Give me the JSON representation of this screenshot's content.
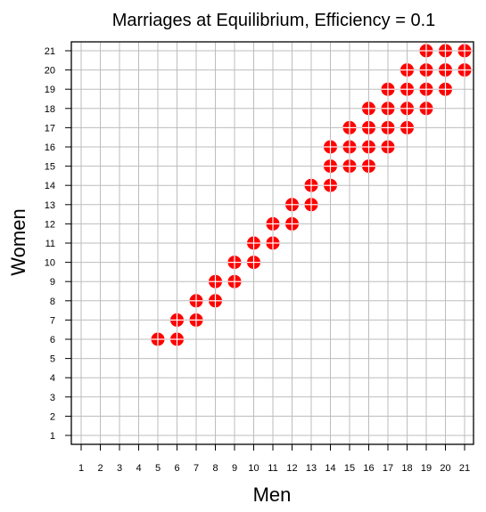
{
  "chart_data": {
    "type": "scatter",
    "title": "Marriages at Equilibrium, Efficiency = 0.1",
    "xlabel": "Men",
    "ylabel": "Women",
    "xlim": [
      1,
      21
    ],
    "ylim": [
      1,
      21
    ],
    "x_ticks": [
      "1",
      "2",
      "3",
      "4",
      "5",
      "6",
      "7",
      "8",
      "9",
      "10",
      "11",
      "12",
      "13",
      "14",
      "15",
      "16",
      "17",
      "18",
      "19",
      "20",
      "21"
    ],
    "y_ticks": [
      "1",
      "2",
      "3",
      "4",
      "5",
      "6",
      "7",
      "8",
      "9",
      "10",
      "11",
      "12",
      "13",
      "14",
      "15",
      "16",
      "17",
      "18",
      "19",
      "20",
      "21"
    ],
    "grid": true,
    "marker_color": "#ff0000",
    "points": [
      [
        5,
        6
      ],
      [
        6,
        6
      ],
      [
        6,
        7
      ],
      [
        7,
        7
      ],
      [
        7,
        8
      ],
      [
        8,
        8
      ],
      [
        8,
        9
      ],
      [
        9,
        9
      ],
      [
        9,
        10
      ],
      [
        10,
        10
      ],
      [
        10,
        11
      ],
      [
        11,
        11
      ],
      [
        11,
        12
      ],
      [
        12,
        12
      ],
      [
        12,
        13
      ],
      [
        13,
        13
      ],
      [
        13,
        14
      ],
      [
        14,
        14
      ],
      [
        14,
        15
      ],
      [
        14,
        16
      ],
      [
        15,
        15
      ],
      [
        15,
        16
      ],
      [
        15,
        17
      ],
      [
        16,
        15
      ],
      [
        16,
        16
      ],
      [
        16,
        17
      ],
      [
        16,
        18
      ],
      [
        17,
        16
      ],
      [
        17,
        17
      ],
      [
        17,
        18
      ],
      [
        17,
        19
      ],
      [
        18,
        17
      ],
      [
        18,
        18
      ],
      [
        18,
        19
      ],
      [
        18,
        20
      ],
      [
        19,
        18
      ],
      [
        19,
        19
      ],
      [
        19,
        20
      ],
      [
        19,
        21
      ],
      [
        20,
        19
      ],
      [
        20,
        20
      ],
      [
        20,
        21
      ],
      [
        21,
        20
      ],
      [
        21,
        21
      ]
    ]
  }
}
